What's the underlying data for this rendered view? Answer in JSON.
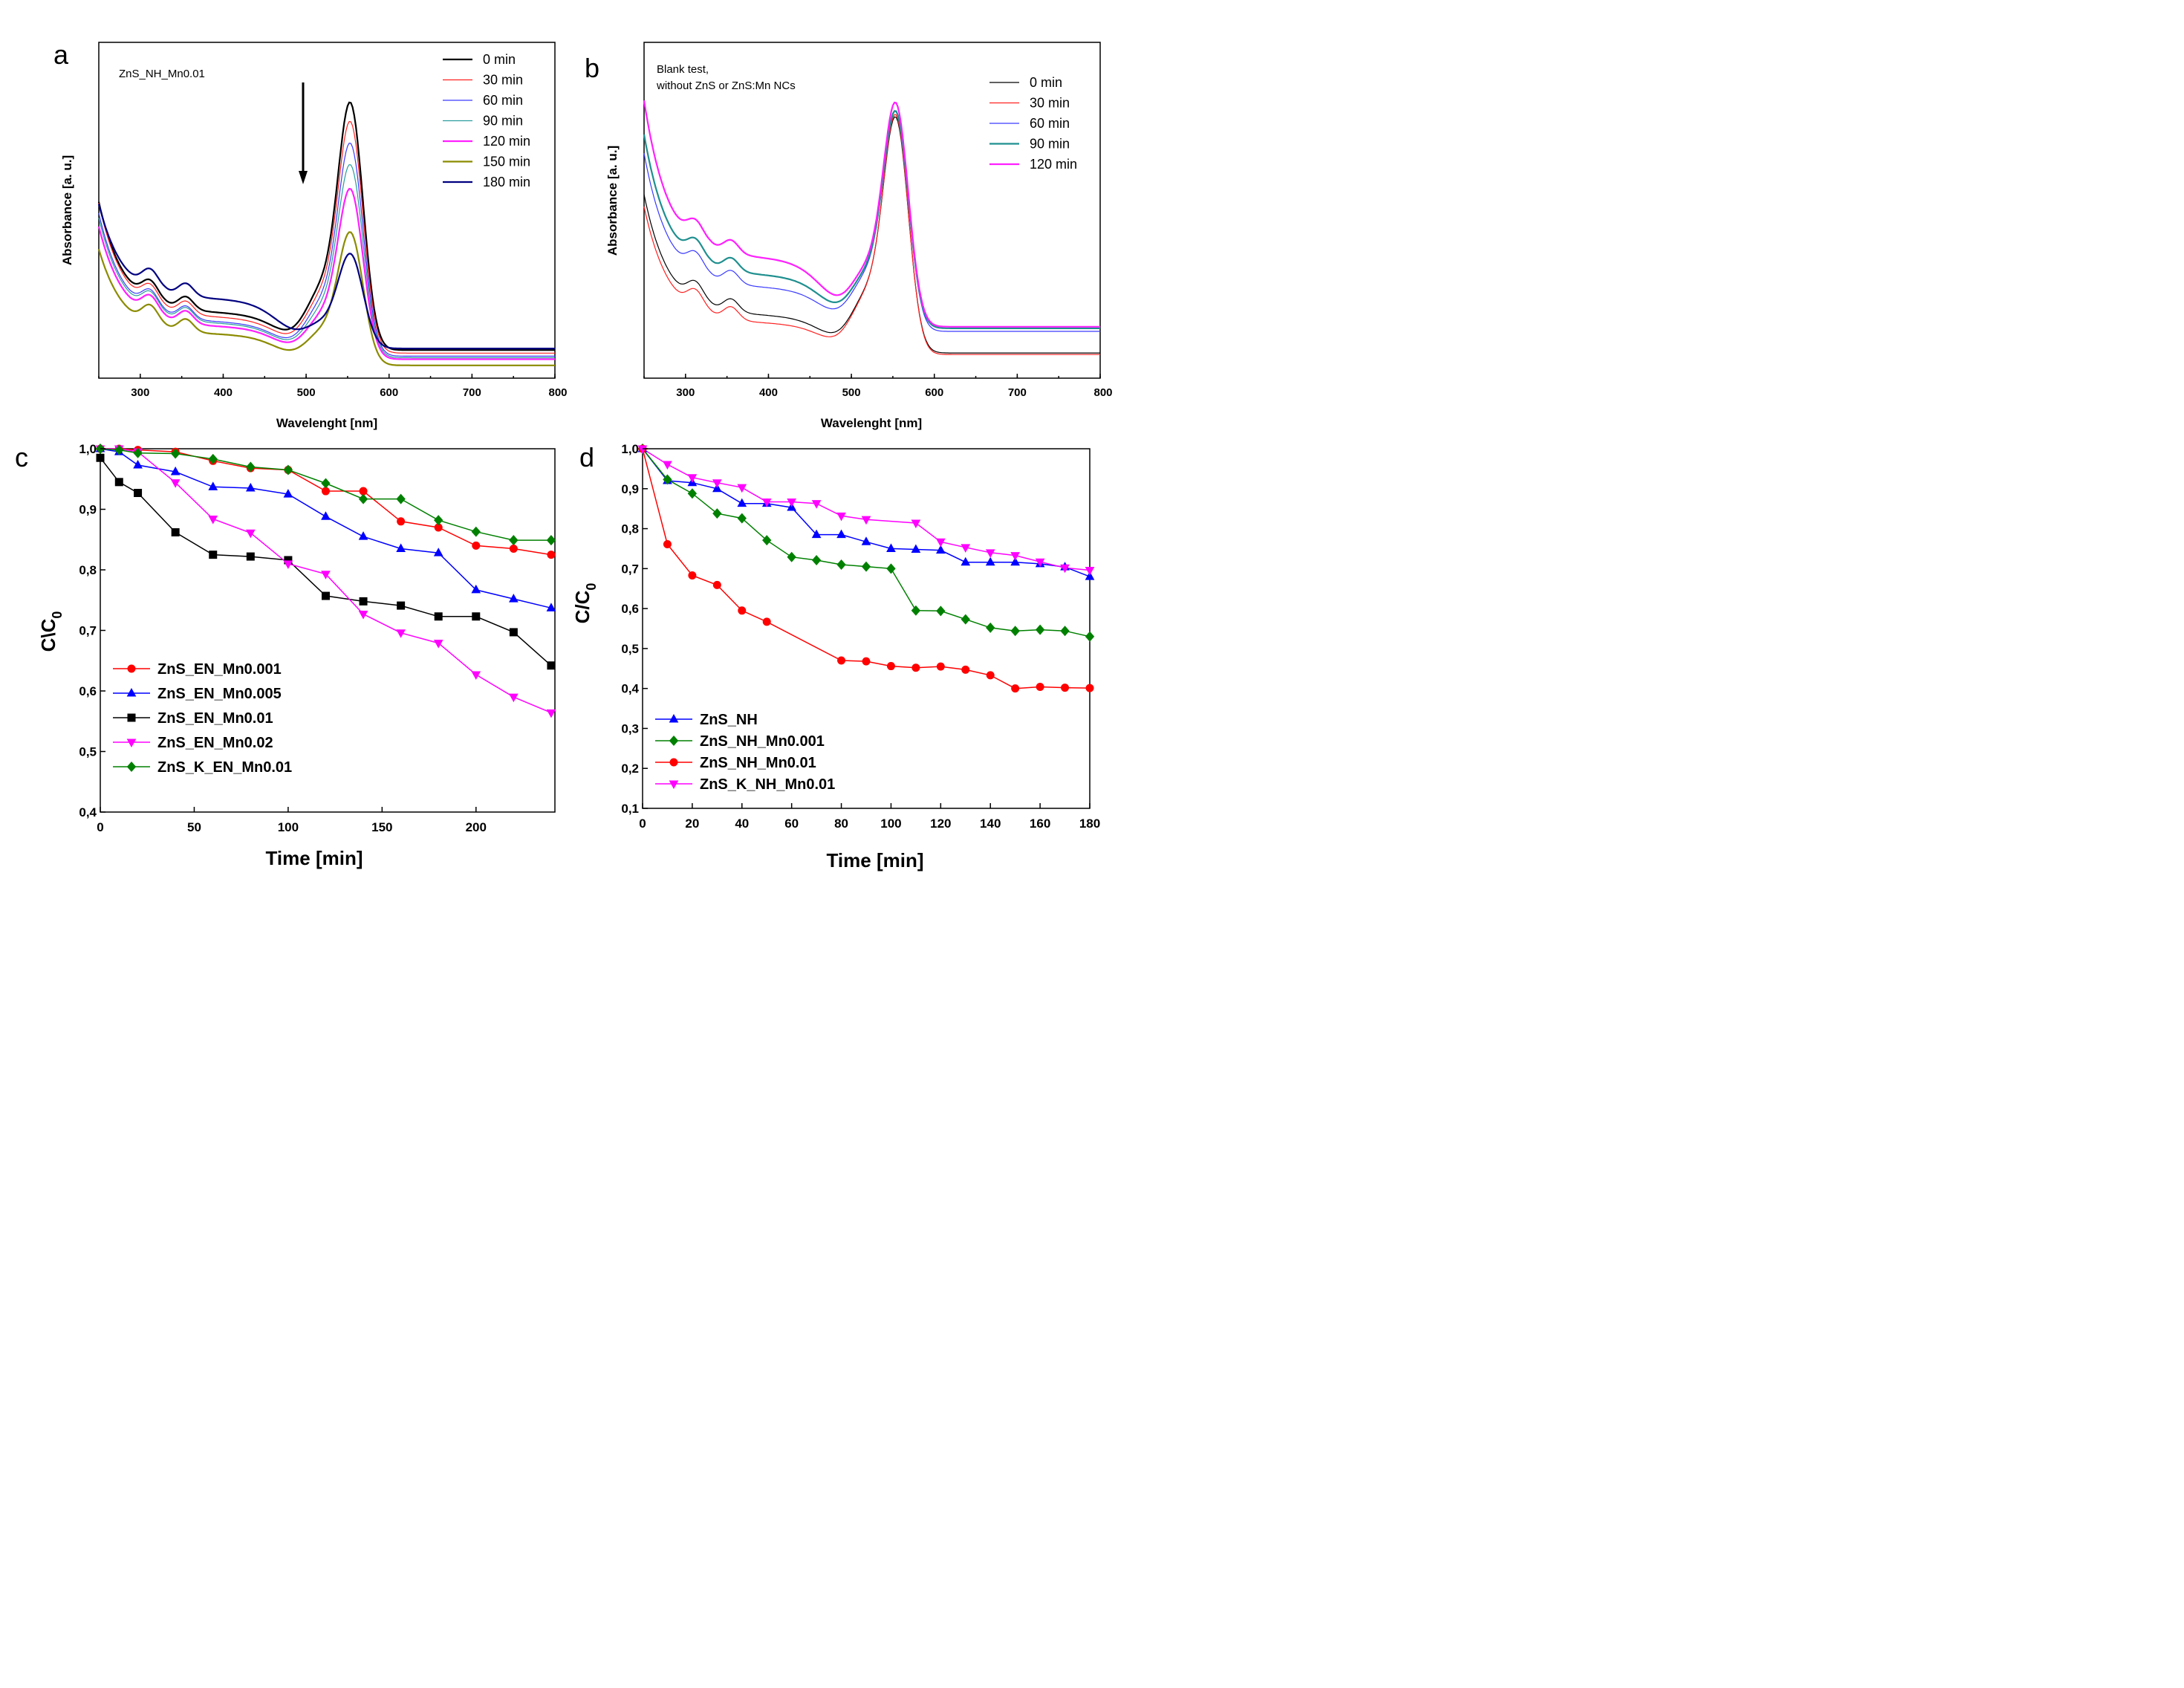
{
  "panel_labels": [
    "a",
    "b",
    "c",
    "d"
  ],
  "chart_data": [
    {
      "id": "a",
      "type": "line",
      "annotation_lines": [
        "ZnS_NH_Mn0.01"
      ],
      "arrow": "downward",
      "xlabel": "Wavelenght [nm]",
      "ylabel": "Absorbance [a. u.]",
      "xlim": [
        250,
        800
      ],
      "ylim": [
        0,
        1
      ],
      "xticks": [
        "300",
        "400",
        "500",
        "600",
        "700",
        "800"
      ],
      "legend_position": "top-right",
      "series": [
        {
          "name": "0 min",
          "color": "#000000",
          "width": 2.2,
          "peak": 1.0,
          "base": 0.07,
          "uv": 0.4,
          "mid": 0.12
        },
        {
          "name": "30 min",
          "color": "#ff2020",
          "width": 1.2,
          "peak": 0.93,
          "base": 0.06,
          "uv": 0.41,
          "mid": 0.115
        },
        {
          "name": "60 min",
          "color": "#3a3aff",
          "width": 1.2,
          "peak": 0.85,
          "base": 0.05,
          "uv": 0.39,
          "mid": 0.11
        },
        {
          "name": "90 min",
          "color": "#2a9d9d",
          "width": 1.2,
          "peak": 0.77,
          "base": 0.045,
          "uv": 0.38,
          "mid": 0.11
        },
        {
          "name": "120 min",
          "color": "#ff20ff",
          "width": 2.2,
          "peak": 0.68,
          "base": 0.04,
          "uv": 0.36,
          "mid": 0.105
        },
        {
          "name": "150 min",
          "color": "#8b8b00",
          "width": 2.2,
          "peak": 0.52,
          "base": 0.02,
          "uv": 0.31,
          "mid": 0.1
        },
        {
          "name": "180 min",
          "color": "#000080",
          "width": 2.2,
          "peak": 0.43,
          "base": 0.075,
          "uv": 0.36,
          "mid": 0.16
        }
      ]
    },
    {
      "id": "b",
      "type": "line",
      "annotation_lines": [
        "Blank test,",
        "without ZnS or ZnS:Mn NCs"
      ],
      "xlabel": "Wavelenght [nm]",
      "ylabel": "Absorbance [a. u.]",
      "xlim": [
        250,
        800
      ],
      "ylim": [
        0,
        1
      ],
      "xticks": [
        "300",
        "400",
        "500",
        "600",
        "700",
        "800"
      ],
      "legend_position": "top-right",
      "series": [
        {
          "name": "0 min",
          "color": "#000000",
          "width": 1.2,
          "peak": 0.94,
          "base": 0.06,
          "uv": 0.43,
          "mid": 0.12
        },
        {
          "name": "30 min",
          "color": "#ff2020",
          "width": 1.2,
          "peak": 0.95,
          "base": 0.055,
          "uv": 0.41,
          "mid": 0.1
        },
        {
          "name": "60 min",
          "color": "#3a3aff",
          "width": 1.2,
          "peak": 0.95,
          "base": 0.13,
          "uv": 0.48,
          "mid": 0.14
        },
        {
          "name": "90 min",
          "color": "#1f8f8f",
          "width": 2.2,
          "peak": 0.95,
          "base": 0.14,
          "uv": 0.51,
          "mid": 0.17
        },
        {
          "name": "120 min",
          "color": "#ff20ff",
          "width": 2.2,
          "peak": 0.98,
          "base": 0.145,
          "uv": 0.58,
          "mid": 0.22
        }
      ]
    },
    {
      "id": "c",
      "type": "line",
      "xlabel": "Time [min]",
      "ylabel": "C\\C",
      "ylabel_sub": "0",
      "xlim": [
        0,
        242
      ],
      "ylim": [
        0.4,
        1.0
      ],
      "xticks": [
        0,
        50,
        100,
        150,
        200
      ],
      "xtick_labels": [
        "0",
        "50",
        "100",
        "150",
        "200"
      ],
      "yticks": [
        0.4,
        0.5,
        0.6,
        0.7,
        0.8,
        0.9,
        1.0
      ],
      "ytick_labels": [
        "0,4",
        "0,5",
        "0,6",
        "0,7",
        "0,8",
        "0,9",
        "1,0"
      ],
      "legend_position": "bottom-left",
      "series": [
        {
          "name": "ZnS_EN_Mn0.001",
          "color": "#ff0000",
          "marker": "circle",
          "x": [
            0,
            10,
            20,
            40,
            60,
            80,
            100,
            120,
            140,
            160,
            180,
            200,
            220,
            240
          ],
          "y": [
            1.0,
            1.0,
            0.998,
            0.995,
            0.98,
            0.968,
            0.965,
            0.93,
            0.93,
            0.88,
            0.87,
            0.84,
            0.835,
            0.825
          ]
        },
        {
          "name": "ZnS_EN_Mn0.005",
          "color": "#0000ff",
          "marker": "triangle-up",
          "x": [
            0,
            10,
            20,
            40,
            60,
            80,
            100,
            120,
            140,
            160,
            180,
            200,
            220,
            240
          ],
          "y": [
            1.0,
            0.995,
            0.973,
            0.962,
            0.937,
            0.935,
            0.925,
            0.888,
            0.855,
            0.835,
            0.828,
            0.767,
            0.752,
            0.737
          ]
        },
        {
          "name": "ZnS_EN_Mn0.01",
          "color": "#000000",
          "marker": "square",
          "x": [
            0,
            10,
            20,
            40,
            60,
            80,
            100,
            120,
            140,
            160,
            180,
            200,
            220,
            240
          ],
          "y": [
            0.985,
            0.945,
            0.927,
            0.862,
            0.825,
            0.822,
            0.816,
            0.757,
            0.748,
            0.741,
            0.723,
            0.723,
            0.697,
            0.642
          ]
        },
        {
          "name": "ZnS_EN_Mn0.02",
          "color": "#ff00ff",
          "marker": "triangle-down",
          "x": [
            0,
            10,
            20,
            40,
            60,
            80,
            100,
            120,
            140,
            160,
            180,
            200,
            220,
            240
          ],
          "y": [
            1.0,
            1.0,
            0.995,
            0.944,
            0.884,
            0.861,
            0.81,
            0.793,
            0.727,
            0.696,
            0.679,
            0.627,
            0.59,
            0.564
          ]
        },
        {
          "name": "ZnS_K_EN_Mn0.01",
          "color": "#008000",
          "marker": "diamond",
          "x": [
            0,
            10,
            20,
            40,
            60,
            80,
            100,
            120,
            140,
            160,
            180,
            200,
            220,
            240
          ],
          "y": [
            1.0,
            0.998,
            0.993,
            0.992,
            0.983,
            0.97,
            0.965,
            0.943,
            0.917,
            0.917,
            0.882,
            0.863,
            0.849,
            0.849
          ]
        }
      ]
    },
    {
      "id": "d",
      "type": "line",
      "xlabel": "Time [min]",
      "ylabel": "C/C",
      "ylabel_sub": "0",
      "xlim": [
        0,
        180
      ],
      "ylim": [
        0.1,
        1.0
      ],
      "xticks": [
        0,
        20,
        40,
        60,
        80,
        100,
        120,
        140,
        160,
        180
      ],
      "xtick_labels": [
        "0",
        "20",
        "40",
        "60",
        "80",
        "100",
        "120",
        "140",
        "160",
        "180"
      ],
      "yticks": [
        0.1,
        0.2,
        0.3,
        0.4,
        0.5,
        0.6,
        0.7,
        0.8,
        0.9,
        1.0
      ],
      "ytick_labels": [
        "0,1",
        "0,2",
        "0,3",
        "0,4",
        "0,5",
        "0,6",
        "0,7",
        "0,8",
        "0,9",
        "1,0"
      ],
      "legend_position": "bottom-left",
      "series": [
        {
          "name": "ZnS_NH",
          "color": "#0000ff",
          "marker": "triangle-up",
          "x": [
            0,
            10,
            20,
            30,
            40,
            50,
            60,
            70,
            80,
            90,
            100,
            110,
            120,
            130,
            140,
            150,
            160,
            170,
            180
          ],
          "y": [
            1.0,
            0.92,
            0.915,
            0.9,
            0.863,
            0.863,
            0.853,
            0.785,
            0.785,
            0.767,
            0.75,
            0.748,
            0.746,
            0.716,
            0.716,
            0.716,
            0.712,
            0.704,
            0.68
          ]
        },
        {
          "name": "ZnS_NH_Mn0.001",
          "color": "#008000",
          "marker": "diamond",
          "x": [
            0,
            10,
            20,
            30,
            40,
            50,
            60,
            70,
            80,
            90,
            100,
            110,
            120,
            130,
            140,
            150,
            160,
            170,
            180
          ],
          "y": [
            1.0,
            0.923,
            0.888,
            0.838,
            0.826,
            0.771,
            0.729,
            0.721,
            0.71,
            0.705,
            0.7,
            0.595,
            0.594,
            0.573,
            0.552,
            0.544,
            0.547,
            0.544,
            0.53
          ]
        },
        {
          "name": "ZnS_NH_Mn0.01",
          "color": "#ff0000",
          "marker": "circle",
          "x": [
            0,
            10,
            20,
            30,
            40,
            50,
            80,
            90,
            100,
            110,
            120,
            130,
            140,
            150,
            160,
            170,
            180
          ],
          "y": [
            1.0,
            0.761,
            0.683,
            0.659,
            0.595,
            0.567,
            0.47,
            0.468,
            0.456,
            0.452,
            0.455,
            0.447,
            0.433,
            0.4,
            0.404,
            0.402,
            0.401
          ]
        },
        {
          "name": "ZnS_K_NH_Mn0.01",
          "color": "#ff00ff",
          "marker": "triangle-down",
          "x": [
            0,
            10,
            20,
            30,
            40,
            50,
            60,
            70,
            80,
            90,
            110,
            120,
            130,
            140,
            150,
            160,
            170,
            180
          ],
          "y": [
            1.0,
            0.961,
            0.928,
            0.915,
            0.903,
            0.867,
            0.867,
            0.863,
            0.832,
            0.823,
            0.814,
            0.767,
            0.753,
            0.74,
            0.733,
            0.717,
            0.702,
            0.696
          ]
        }
      ]
    }
  ]
}
